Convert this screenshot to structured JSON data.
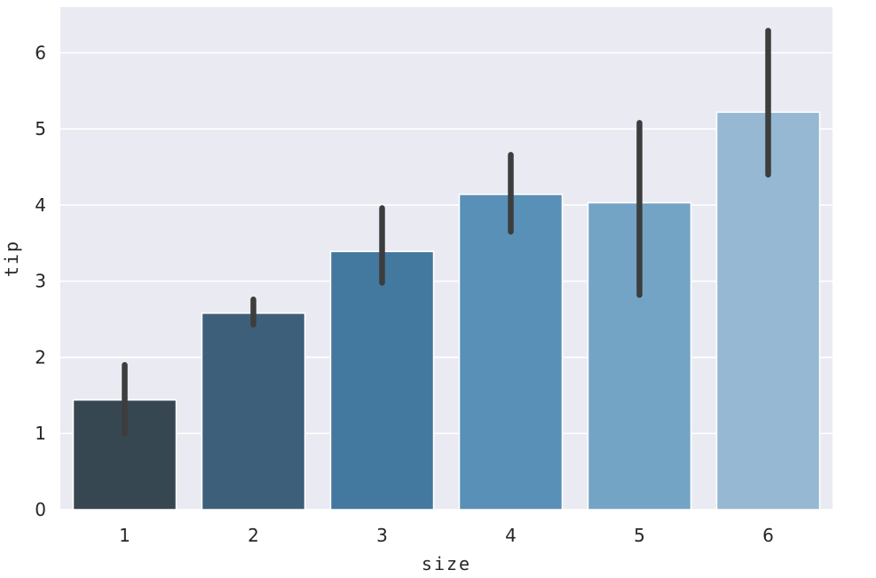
{
  "chart_data": {
    "type": "bar",
    "xlabel": "size",
    "ylabel": "tip",
    "categories": [
      "1",
      "2",
      "3",
      "4",
      "5",
      "6"
    ],
    "values": [
      1.44,
      2.58,
      3.39,
      4.14,
      4.03,
      5.22
    ],
    "error_low": [
      1.0,
      2.43,
      2.98,
      3.65,
      2.82,
      4.4
    ],
    "error_high": [
      1.9,
      2.76,
      3.96,
      4.66,
      5.08,
      6.29
    ],
    "ylim": [
      0,
      6.6
    ],
    "yticks": [
      "0",
      "1",
      "2",
      "3",
      "4",
      "5",
      "6"
    ],
    "grid": true,
    "colors": {
      "background": "#eaeaf2",
      "grid": "#ffffff",
      "errorbar": "#3d3d3d",
      "bars": [
        "#374751",
        "#3e5f79",
        "#43799e",
        "#5890b8",
        "#74a4c5",
        "#96b8d2"
      ]
    }
  }
}
